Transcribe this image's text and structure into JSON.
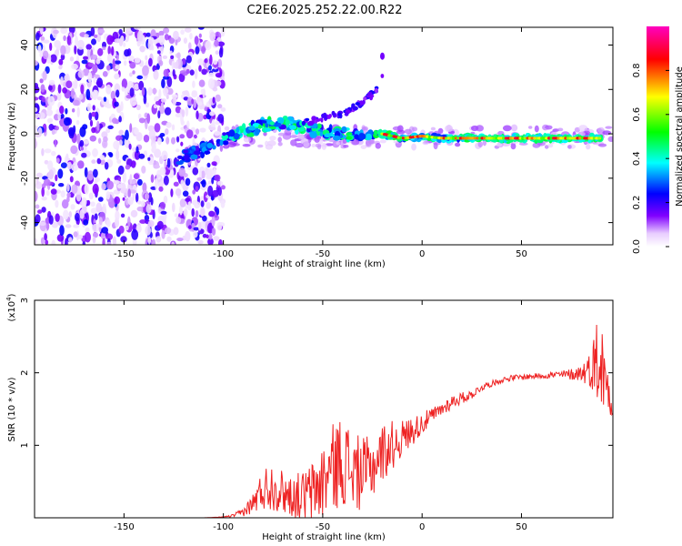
{
  "title": "C2E6.2025.252.22.00.R22",
  "chart_data": [
    {
      "type": "heatmap",
      "xlabel": "Height of straight line (km)",
      "ylabel": "Frequency (Hz)",
      "xlim": [
        -195,
        96
      ],
      "ylim": [
        -50,
        48
      ],
      "xticks": [
        -150,
        -100,
        -50,
        0,
        50
      ],
      "yticks": [
        -40,
        -20,
        0,
        20,
        40
      ],
      "colorbar": {
        "label": "Normalized spectral amplitude",
        "range": [
          0,
          1
        ],
        "ticks": [
          "0.0",
          "0.2",
          "0.4",
          "0.6",
          "0.8"
        ],
        "colors": [
          "#ffffff",
          "#8000ff",
          "#0000ff",
          "#00ffff",
          "#00ff00",
          "#ffff00",
          "#ff0000",
          "#ff00c0"
        ]
      },
      "features": [
        {
          "name": "noise region",
          "x_range": [
            -195,
            -100
          ],
          "freq_range": [
            -50,
            48
          ],
          "amplitude": 0.15
        },
        {
          "name": "meteor trail",
          "points": [
            [
              -122,
              -11
            ],
            [
              -110,
              -7
            ],
            [
              -100,
              -2
            ],
            [
              -90,
              1
            ],
            [
              -80,
              4
            ],
            [
              -70,
              5
            ],
            [
              -60,
              3
            ],
            [
              -50,
              1
            ],
            [
              -40,
              0
            ],
            [
              -30,
              -1
            ],
            [
              -20,
              0
            ],
            [
              -10,
              -2
            ],
            [
              0,
              -1
            ],
            [
              10,
              -2
            ],
            [
              20,
              -2
            ],
            [
              30,
              -2
            ],
            [
              40,
              -2
            ],
            [
              50,
              -2
            ],
            [
              60,
              -2
            ],
            [
              70,
              -2
            ],
            [
              80,
              -2
            ],
            [
              90,
              -2
            ]
          ],
          "amplitude": 0.55
        },
        {
          "name": "echo branch",
          "points": [
            [
              -60,
              5
            ],
            [
              -50,
              7
            ],
            [
              -40,
              9
            ],
            [
              -30,
              14
            ],
            [
              -25,
              18
            ],
            [
              -22,
              22
            ],
            [
              -20,
              27
            ]
          ]
        },
        {
          "name": "isolated echo",
          "points": [
            [
              -20,
              35
            ]
          ]
        }
      ]
    },
    {
      "type": "line",
      "xlabel": "Height of straight line (km)",
      "ylabel": "SNR (10 * v/v)",
      "y_scale_label": "(x10",
      "y_scale_exp": "4",
      "y_scale_suffix": ")",
      "xlim": [
        -195,
        96
      ],
      "ylim": [
        0,
        3
      ],
      "xticks": [
        -150,
        -100,
        -50,
        0,
        50
      ],
      "yticks": [
        1,
        2,
        3
      ],
      "color": "#ee2222",
      "series": [
        {
          "name": "SNR",
          "x": [
            -195,
            -150,
            -110,
            -100,
            -95,
            -90,
            -85,
            -80,
            -75,
            -70,
            -65,
            -60,
            -55,
            -50,
            -45,
            -40,
            -35,
            -30,
            -25,
            -20,
            -15,
            -10,
            -5,
            0,
            5,
            10,
            15,
            20,
            25,
            30,
            35,
            40,
            45,
            50,
            55,
            60,
            65,
            70,
            75,
            80,
            85,
            88,
            90,
            92,
            94,
            96
          ],
          "values": [
            0.0,
            0.0,
            0.0,
            0.01,
            0.03,
            0.08,
            0.2,
            0.4,
            0.45,
            0.35,
            0.3,
            0.3,
            0.35,
            0.5,
            0.7,
            0.8,
            0.65,
            0.6,
            0.7,
            0.9,
            1.0,
            1.1,
            1.2,
            1.3,
            1.4,
            1.5,
            1.6,
            1.65,
            1.7,
            1.8,
            1.85,
            1.9,
            1.93,
            1.94,
            1.95,
            1.96,
            1.97,
            1.97,
            1.98,
            2.0,
            2.05,
            2.2,
            2.1,
            1.9,
            1.8,
            1.5
          ],
          "noise_amplitude": [
            0,
            0,
            0,
            0.005,
            0.02,
            0.06,
            0.15,
            0.3,
            0.35,
            0.3,
            0.3,
            0.35,
            0.45,
            0.55,
            0.6,
            0.65,
            0.55,
            0.5,
            0.45,
            0.4,
            0.35,
            0.25,
            0.2,
            0.15,
            0.12,
            0.1,
            0.1,
            0.08,
            0.06,
            0.05,
            0.04,
            0.04,
            0.04,
            0.04,
            0.04,
            0.04,
            0.05,
            0.06,
            0.08,
            0.12,
            0.25,
            0.6,
            0.7,
            0.5,
            0.3,
            0.2
          ]
        }
      ]
    }
  ]
}
